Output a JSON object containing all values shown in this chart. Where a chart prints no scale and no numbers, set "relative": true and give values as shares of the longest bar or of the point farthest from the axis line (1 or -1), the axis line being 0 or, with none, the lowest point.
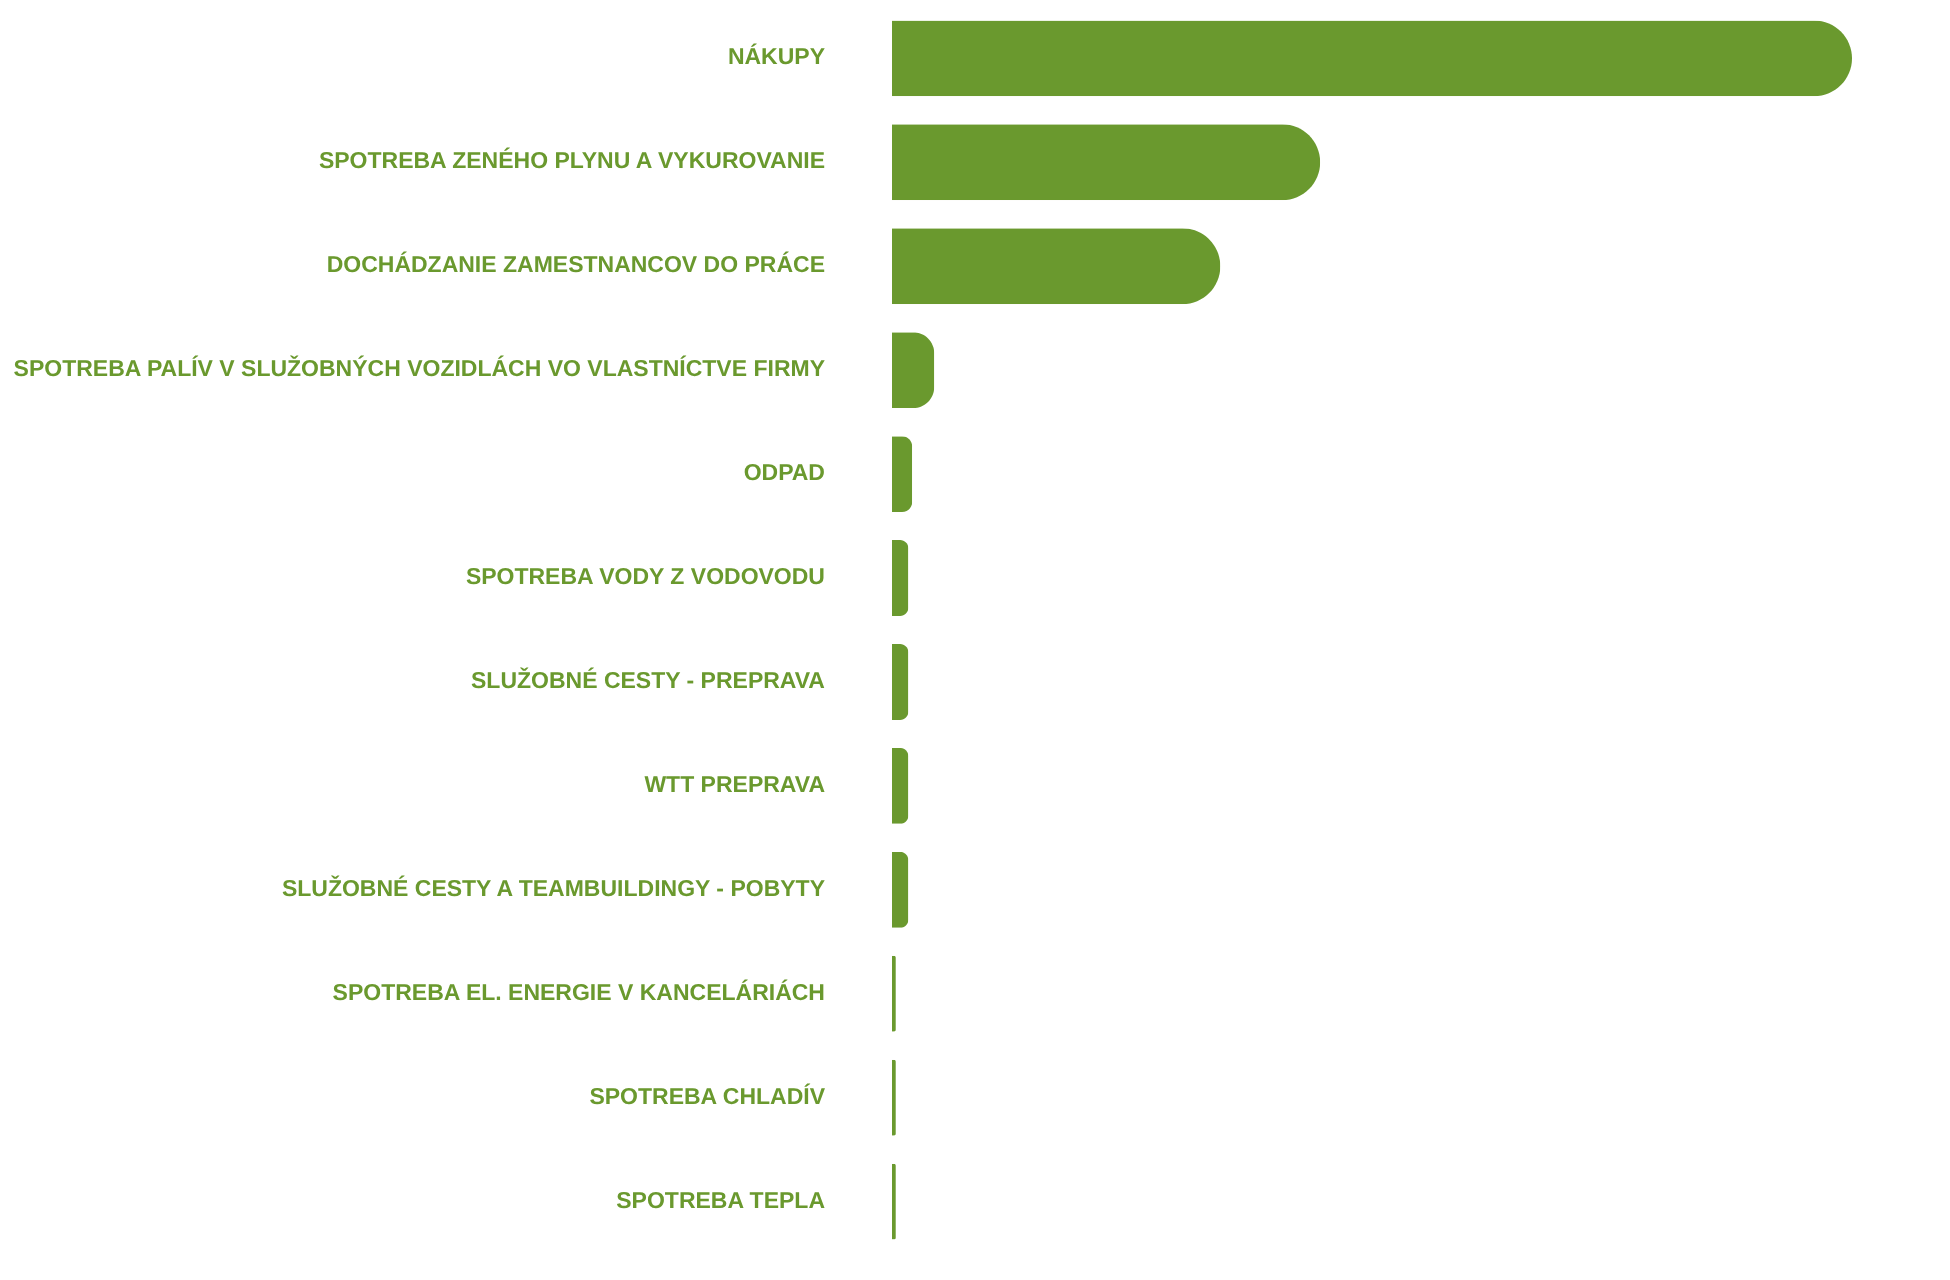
{
  "chart_data": {
    "type": "bar",
    "orientation": "horizontal",
    "relative": true,
    "legend": false,
    "tick_labels": "y",
    "categories": [
      "NÁKUPY",
      "SPOTREBA ZENÉHO PLYNU A VYKUROVANIE",
      "DOCHÁDZANIE ZAMESTNANCOV DO PRÁCE",
      "SPOTREBA PALÍV V SLUŽOBNÝCH VOZIDLÁCH VO VLASTNÍCTVE FIRMY",
      "ODPAD",
      "SPOTREBA VODY Z VODOVODU",
      "SLUŽOBNÉ CESTY - PREPRAVA",
      "WTT PREPRAVA",
      "SLUŽOBNÉ CESTY A TEAMBUILDINGY - POBYTY",
      "SPOTREBA EL. ENERGIE V KANCELÁRIÁCH",
      "SPOTREBA CHLADÍV",
      "SPOTREBA TEPLA"
    ],
    "series": [
      {
        "color": "#6a992e",
        "values": [
          1,
          0.446,
          0.342,
          0.044,
          0.021,
          0.017,
          0.017,
          0.017,
          0.017,
          0.004,
          0.004,
          0.004
        ]
      }
    ]
  }
}
